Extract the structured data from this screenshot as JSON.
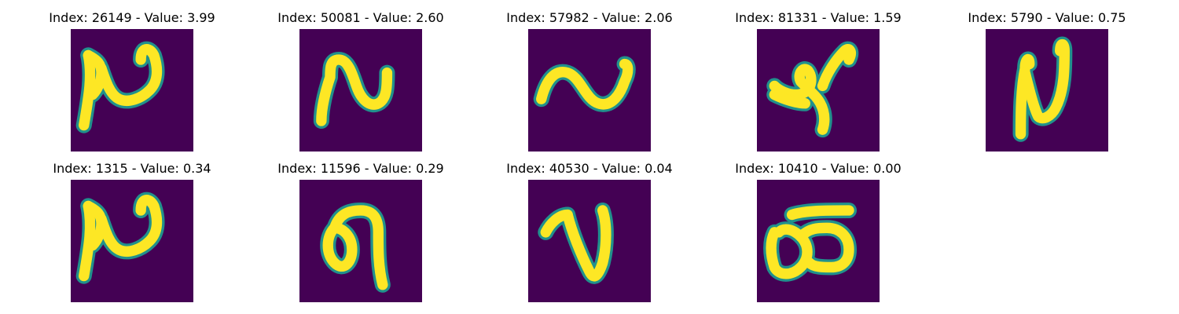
{
  "chart_data": {
    "type": "image-grid",
    "colormap": {
      "name": "viridis",
      "background": "#440154",
      "mid": "#21918c",
      "high": "#fde725"
    },
    "panels": [
      {
        "title": "Index: 26149 - Value: 3.99",
        "index": 26149,
        "value": 3.99,
        "glyph": "squiggle-n-hook"
      },
      {
        "title": "Index: 50081 - Value: 2.60",
        "index": 50081,
        "value": 2.6,
        "glyph": "squiggle-n"
      },
      {
        "title": "Index: 57982 - Value: 2.06",
        "index": 57982,
        "value": 2.06,
        "glyph": "wave"
      },
      {
        "title": "Index: 81331 - Value: 1.59",
        "index": 81331,
        "value": 1.59,
        "glyph": "hook-curl"
      },
      {
        "title": "Index: 5790 - Value: 0.75",
        "index": 5790,
        "value": 0.75,
        "glyph": "tall-n"
      },
      {
        "title": "Index: 1315 - Value: 0.34",
        "index": 1315,
        "value": 0.34,
        "glyph": "squiggle-n-hook"
      },
      {
        "title": "Index: 11596 - Value: 0.29",
        "index": 11596,
        "value": 0.29,
        "glyph": "loop-hook"
      },
      {
        "title": "Index: 40530 - Value: 0.04",
        "index": 40530,
        "value": 0.04,
        "glyph": "v-loop"
      },
      {
        "title": "Index: 10410 - Value: 0.00",
        "index": 10410,
        "value": 0.0,
        "glyph": "double-loop"
      }
    ]
  }
}
